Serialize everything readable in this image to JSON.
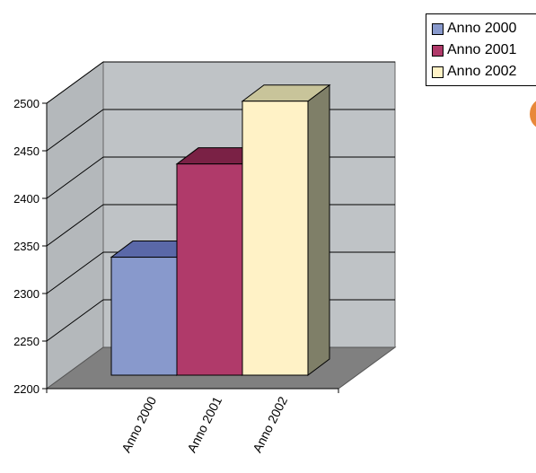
{
  "chart_data": {
    "type": "bar",
    "style": "3d-clustered-column",
    "categories": [
      "Anno 2000",
      "Anno 2001",
      "Anno 2002"
    ],
    "series": [
      {
        "name": "Anno 2000",
        "values": [
          2324,
          null,
          null
        ],
        "color": "#8899cc"
      },
      {
        "name": "Anno 2001",
        "values": [
          null,
          2422,
          null
        ],
        "color": "#b03a6a"
      },
      {
        "name": "Anno 2002",
        "values": [
          null,
          null,
          2488
        ],
        "color": "#fff2c6"
      }
    ],
    "y_ticks": [
      "2200",
      "2250",
      "2300",
      "2350",
      "2400",
      "2450",
      "2500"
    ],
    "ylim": [
      2200,
      2500
    ],
    "legend_position": "top-right",
    "grid": true,
    "colors": {
      "back_wall": "#bfc3c6",
      "side_wall": "#b4b8bb",
      "floor": "#808080",
      "gridline": "#000000"
    }
  }
}
